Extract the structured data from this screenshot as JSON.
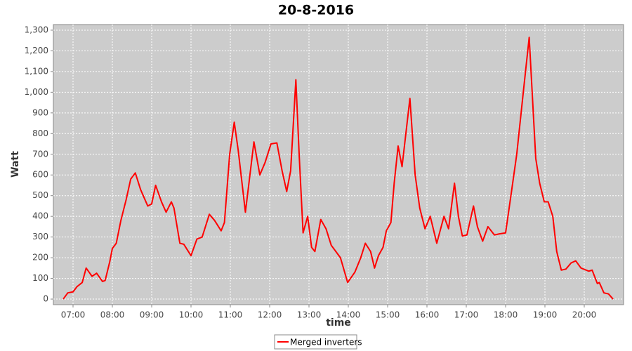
{
  "chart_data": {
    "type": "line",
    "title": "20-8-2016",
    "x_label": "time",
    "y_label": "Watt",
    "x": [
      405,
      412,
      420,
      426,
      434,
      440,
      449,
      456,
      465,
      469,
      476,
      480,
      486,
      493,
      501,
      508,
      515,
      523,
      534,
      540,
      546,
      555,
      562,
      570,
      574,
      583,
      589,
      600,
      609,
      617,
      628,
      636,
      646,
      651,
      659,
      666,
      672,
      683,
      688,
      696,
      705,
      713,
      722,
      731,
      739,
      746,
      752,
      760,
      765,
      771,
      778,
      784,
      789,
      798,
      806,
      814,
      821,
      828,
      839,
      850,
      859,
      866,
      874,
      880,
      886,
      893,
      898,
      905,
      910,
      916,
      922,
      934,
      942,
      949,
      957,
      965,
      975,
      986,
      993,
      1002,
      1008,
      1014,
      1021,
      1031,
      1037,
      1045,
      1053,
      1063,
      1070,
      1080,
      1089,
      1097,
      1107,
      1116,
      1126,
      1132,
      1139,
      1145,
      1152,
      1158,
      1165,
      1172,
      1180,
      1187,
      1195,
      1207,
      1212,
      1220,
      1223,
      1230,
      1237,
      1244
    ],
    "series": [
      {
        "name": "Merged inverters",
        "color": "#ff0000",
        "values": [
          0,
          30,
          35,
          60,
          80,
          150,
          110,
          125,
          85,
          90,
          180,
          245,
          270,
          380,
          480,
          580,
          610,
          530,
          450,
          460,
          550,
          470,
          420,
          470,
          440,
          270,
          265,
          210,
          290,
          300,
          410,
          380,
          330,
          370,
          700,
          855,
          720,
          420,
          550,
          760,
          600,
          660,
          750,
          755,
          620,
          520,
          620,
          1060,
          700,
          320,
          400,
          250,
          230,
          385,
          340,
          260,
          230,
          200,
          80,
          130,
          200,
          270,
          230,
          150,
          210,
          250,
          330,
          370,
          560,
          740,
          640,
          970,
          600,
          440,
          340,
          400,
          270,
          400,
          340,
          560,
          400,
          305,
          310,
          450,
          350,
          280,
          350,
          310,
          315,
          320,
          520,
          700,
          1000,
          1265,
          680,
          560,
          470,
          470,
          400,
          230,
          140,
          145,
          175,
          185,
          150,
          135,
          140,
          75,
          80,
          30,
          25,
          0
        ]
      }
    ],
    "xlim": [
      390,
      1260
    ],
    "xticks": [
      {
        "value": 420,
        "label": "07:00"
      },
      {
        "value": 480,
        "label": "08:00"
      },
      {
        "value": 540,
        "label": "09:00"
      },
      {
        "value": 600,
        "label": "10:00"
      },
      {
        "value": 660,
        "label": "11:00"
      },
      {
        "value": 720,
        "label": "12:00"
      },
      {
        "value": 780,
        "label": "13:00"
      },
      {
        "value": 840,
        "label": "14:00"
      },
      {
        "value": 900,
        "label": "15:00"
      },
      {
        "value": 960,
        "label": "16:00"
      },
      {
        "value": 1020,
        "label": "17:00"
      },
      {
        "value": 1080,
        "label": "18:00"
      },
      {
        "value": 1140,
        "label": "19:00"
      },
      {
        "value": 1200,
        "label": "20:00"
      }
    ],
    "ylim": [
      -27,
      1327
    ],
    "yticks": [
      0,
      100,
      200,
      300,
      400,
      500,
      600,
      700,
      800,
      900,
      {
        "value": 1000,
        "label": "1,000"
      },
      {
        "value": 1100,
        "label": "1,100"
      },
      {
        "value": 1200,
        "label": "1,200"
      },
      {
        "value": 1300,
        "label": "1,300"
      }
    ],
    "grid": true,
    "legend": "bottom"
  }
}
